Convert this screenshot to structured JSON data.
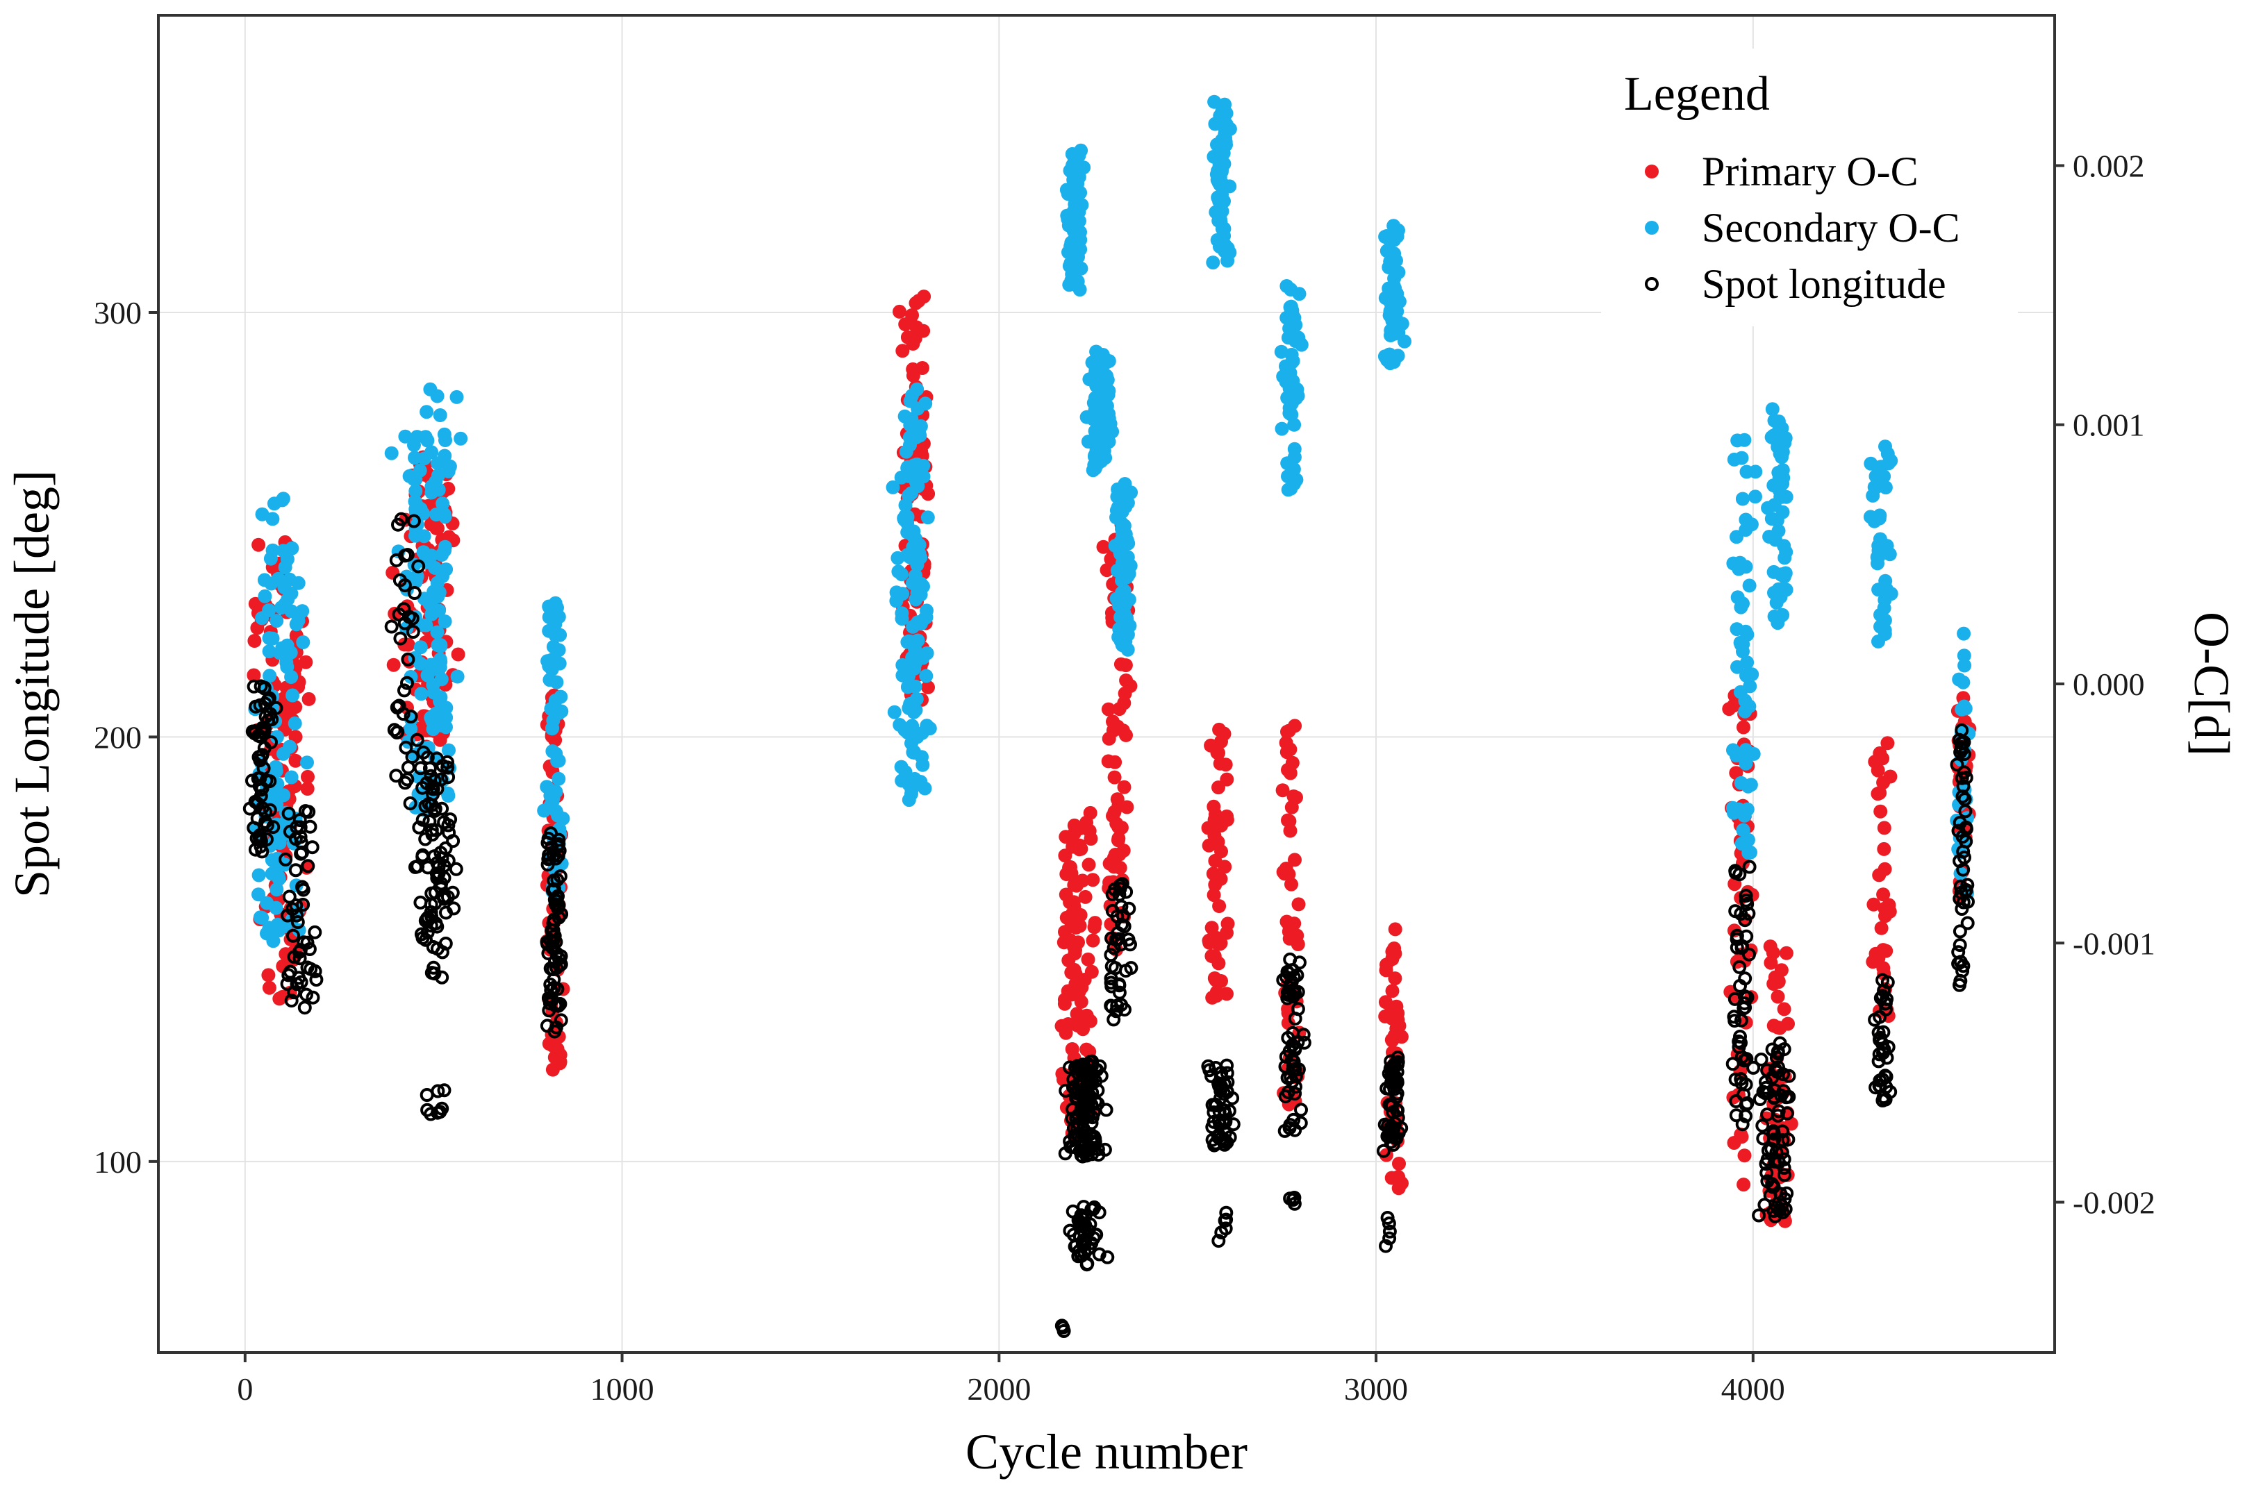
{
  "chart_data": {
    "type": "scatter",
    "title": "",
    "xlabel": "Cycle number",
    "ylabel_left": "Spot Longitude [deg]",
    "ylabel_right": "O-C[d]",
    "xlim": [
      -230,
      4800
    ],
    "ylim_left": [
      55,
      370
    ],
    "ylim_right": [
      -0.00258,
      0.00258
    ],
    "x_ticks": [
      0,
      1000,
      2000,
      3000,
      4000
    ],
    "x_tick_labels": [
      "0",
      "1000",
      "2000",
      "3000",
      "4000"
    ],
    "y_left_ticks": [
      100,
      200,
      300
    ],
    "y_left_tick_labels": [
      "100",
      "200",
      "300"
    ],
    "y_right_ticks": [
      -0.002,
      -0.001,
      0.0,
      0.001,
      0.002
    ],
    "y_right_tick_labels": [
      "-0.002",
      "-0.001",
      "0.000",
      "0.001",
      "0.002"
    ],
    "grid": true,
    "legend": {
      "title": "Legend",
      "position": "top-right",
      "entries": [
        {
          "label": "Primary O-C",
          "marker": "filled",
          "color": "#ed1c24"
        },
        {
          "label": "Secondary O-C",
          "marker": "filled",
          "color": "#1ab0ec"
        },
        {
          "label": "Spot longitude",
          "marker": "open",
          "color": "#000000"
        }
      ]
    },
    "series": [
      {
        "name": "Primary O-C",
        "axis": "right",
        "color": "#ed1c24",
        "note": "representative cluster summaries read from the plot (x range in cycles, O-C range in days, point count)",
        "clusters": [
          {
            "x": [
              0,
              200
            ],
            "y": [
              -0.0013,
              0.00065
            ],
            "n": 110
          },
          {
            "x": [
              380,
              590
            ],
            "y": [
              -0.0003,
              0.00095
            ],
            "n": 110
          },
          {
            "x": [
              790,
              850
            ],
            "y": [
              -0.0016,
              5e-05
            ],
            "n": 70
          },
          {
            "x": [
              1710,
              1830
            ],
            "y": [
              -0.00015,
              0.0016
            ],
            "n": 95
          },
          {
            "x": [
              2140,
              2270
            ],
            "y": [
              -0.0018,
              -0.00045
            ],
            "n": 110
          },
          {
            "x": [
              2270,
              2360
            ],
            "y": [
              -0.0011,
              0.00065
            ],
            "n": 70
          },
          {
            "x": [
              2540,
              2620
            ],
            "y": [
              -0.0013,
              -5e-05
            ],
            "n": 50
          },
          {
            "x": [
              2740,
              2810
            ],
            "y": [
              -0.0017,
              0.0
            ],
            "n": 50
          },
          {
            "x": [
              3010,
              3080
            ],
            "y": [
              -0.002,
              -0.0009
            ],
            "n": 50
          },
          {
            "x": [
              3930,
              4010
            ],
            "y": [
              -0.002,
              5e-05
            ],
            "n": 50
          },
          {
            "x": [
              4020,
              4110
            ],
            "y": [
              -0.0022,
              -0.0009
            ],
            "n": 60
          },
          {
            "x": [
              4310,
              4370
            ],
            "y": [
              -0.0014,
              -0.0001
            ],
            "n": 35
          },
          {
            "x": [
              4530,
              4580
            ],
            "y": [
              -0.0009,
              5e-05
            ],
            "n": 30
          }
        ]
      },
      {
        "name": "Secondary O-C",
        "axis": "right",
        "color": "#1ab0ec",
        "note": "representative cluster summaries read from the plot (x range in cycles, O-C range in days, point count)",
        "clusters": [
          {
            "x": [
              0,
              190
            ],
            "y": [
              -0.0011,
              0.0008
            ],
            "n": 110
          },
          {
            "x": [
              380,
              590
            ],
            "y": [
              -0.0006,
              0.0012
            ],
            "n": 130
          },
          {
            "x": [
              790,
              850
            ],
            "y": [
              -0.0009,
              0.0004
            ],
            "n": 70
          },
          {
            "x": [
              1710,
              1830
            ],
            "y": [
              -0.0005,
              0.0012
            ],
            "n": 130
          },
          {
            "x": [
              2170,
              2230
            ],
            "y": [
              0.0015,
              0.0021
            ],
            "n": 90
          },
          {
            "x": [
              2230,
              2310
            ],
            "y": [
              0.0008,
              0.0013
            ],
            "n": 80
          },
          {
            "x": [
              2300,
              2360
            ],
            "y": [
              0.0001,
              0.0008
            ],
            "n": 70
          },
          {
            "x": [
              2560,
              2620
            ],
            "y": [
              0.0016,
              0.0023
            ],
            "n": 60
          },
          {
            "x": [
              2740,
              2810
            ],
            "y": [
              0.0007,
              0.0016
            ],
            "n": 55
          },
          {
            "x": [
              3010,
              3080
            ],
            "y": [
              0.0012,
              0.0018
            ],
            "n": 55
          },
          {
            "x": [
              3930,
              4020
            ],
            "y": [
              -0.0008,
              0.001
            ],
            "n": 55
          },
          {
            "x": [
              4030,
              4110
            ],
            "y": [
              0.0002,
              0.0011
            ],
            "n": 55
          },
          {
            "x": [
              4310,
              4370
            ],
            "y": [
              0.0001,
              0.001
            ],
            "n": 40
          },
          {
            "x": [
              4530,
              4580
            ],
            "y": [
              -0.0009,
              0.0003
            ],
            "n": 30
          }
        ]
      },
      {
        "name": "Spot longitude",
        "axis": "left",
        "color": "#000000",
        "note": "representative cluster summaries read from the plot (x range in cycles, longitude range in degrees, point count)",
        "clusters": [
          {
            "x": [
              0,
              90
            ],
            "y": [
              170,
              215
            ],
            "n": 60
          },
          {
            "x": [
              90,
              200
            ],
            "y": [
              135,
              185
            ],
            "n": 50
          },
          {
            "x": [
              380,
              470
            ],
            "y": [
              185,
              255
            ],
            "n": 35
          },
          {
            "x": [
              420,
              590
            ],
            "y": [
              140,
              200
            ],
            "n": 90
          },
          {
            "x": [
              460,
              560
            ],
            "y": [
              108,
              120
            ],
            "n": 8
          },
          {
            "x": [
              790,
              850
            ],
            "y": [
              128,
              180
            ],
            "n": 70
          },
          {
            "x": [
              2160,
              2300
            ],
            "y": [
              100,
              125
            ],
            "n": 120
          },
          {
            "x": [
              2160,
              2300
            ],
            "y": [
              75,
              90
            ],
            "n": 40
          },
          {
            "x": [
              2160,
              2180
            ],
            "y": [
              60,
              62
            ],
            "n": 3
          },
          {
            "x": [
              2280,
              2360
            ],
            "y": [
              130,
              170
            ],
            "n": 40
          },
          {
            "x": [
              2540,
              2640
            ],
            "y": [
              103,
              125
            ],
            "n": 50
          },
          {
            "x": [
              2560,
              2620
            ],
            "y": [
              80,
              90
            ],
            "n": 6
          },
          {
            "x": [
              2740,
              2820
            ],
            "y": [
              105,
              150
            ],
            "n": 55
          },
          {
            "x": [
              2760,
              2800
            ],
            "y": [
              88,
              92
            ],
            "n": 4
          },
          {
            "x": [
              3010,
              3080
            ],
            "y": [
              100,
              125
            ],
            "n": 55
          },
          {
            "x": [
              3010,
              3060
            ],
            "y": [
              78,
              88
            ],
            "n": 5
          },
          {
            "x": [
              3930,
              4010
            ],
            "y": [
              105,
              172
            ],
            "n": 50
          },
          {
            "x": [
              4010,
              4110
            ],
            "y": [
              85,
              130
            ],
            "n": 70
          },
          {
            "x": [
              4310,
              4380
            ],
            "y": [
              110,
              145
            ],
            "n": 35
          },
          {
            "x": [
              4530,
              4580
            ],
            "y": [
              140,
              205
            ],
            "n": 45
          }
        ]
      }
    ]
  }
}
